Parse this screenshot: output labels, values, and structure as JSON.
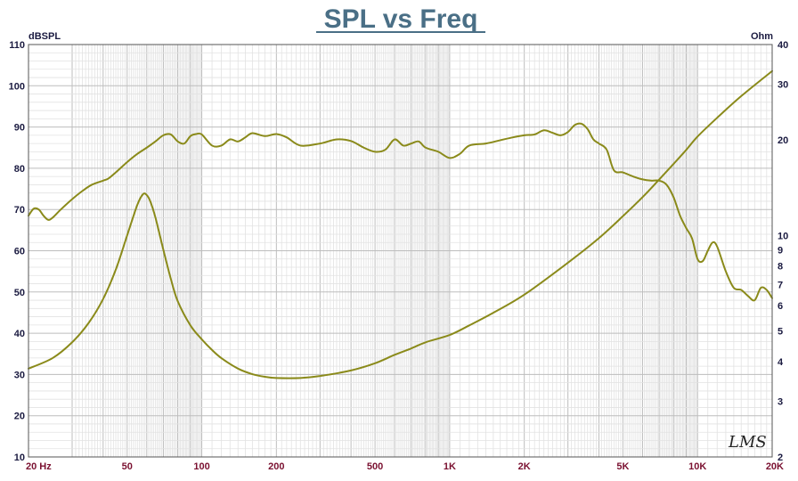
{
  "chart_data": {
    "type": "line",
    "title": "SPL vs Freq",
    "ylabel": "dBSPL",
    "y2label": "Ohm",
    "xscale": "log",
    "y2scale": "log",
    "xlim": [
      20,
      20000
    ],
    "ylim": [
      10,
      110
    ],
    "y2lim": [
      2,
      40
    ],
    "grid": true,
    "xticks": [
      {
        "v": 20,
        "label": "20  Hz"
      },
      {
        "v": 50,
        "label": "50"
      },
      {
        "v": 100,
        "label": "100"
      },
      {
        "v": 200,
        "label": "200"
      },
      {
        "v": 500,
        "label": "500"
      },
      {
        "v": 1000,
        "label": "1K"
      },
      {
        "v": 2000,
        "label": "2K"
      },
      {
        "v": 5000,
        "label": "5K"
      },
      {
        "v": 10000,
        "label": "10K"
      },
      {
        "v": 20000,
        "label": "20K"
      }
    ],
    "yticks": [
      {
        "v": 10,
        "label": "10"
      },
      {
        "v": 20,
        "label": "20"
      },
      {
        "v": 30,
        "label": "30"
      },
      {
        "v": 40,
        "label": "40"
      },
      {
        "v": 50,
        "label": "50"
      },
      {
        "v": 60,
        "label": "60"
      },
      {
        "v": 70,
        "label": "70"
      },
      {
        "v": 80,
        "label": "80"
      },
      {
        "v": 90,
        "label": "90"
      },
      {
        "v": 100,
        "label": "100"
      },
      {
        "v": 110,
        "label": "110"
      }
    ],
    "y2ticks": [
      {
        "v": 2,
        "label": "2"
      },
      {
        "v": 3,
        "label": "3"
      },
      {
        "v": 4,
        "label": "4"
      },
      {
        "v": 5,
        "label": "5"
      },
      {
        "v": 6,
        "label": "6"
      },
      {
        "v": 7,
        "label": "7"
      },
      {
        "v": 8,
        "label": "8"
      },
      {
        "v": 9,
        "label": "9"
      },
      {
        "v": 10,
        "label": "10"
      },
      {
        "v": 20,
        "label": "20"
      },
      {
        "v": 30,
        "label": "30"
      },
      {
        "v": 40,
        "label": "40"
      }
    ],
    "annotation": "LMS",
    "line_color": "#8a8a1a",
    "series": [
      {
        "axis": "left",
        "x": [
          20,
          21,
          22,
          23,
          24,
          25,
          27,
          30,
          33,
          36,
          40,
          42,
          45,
          50,
          55,
          60,
          65,
          70,
          75,
          80,
          85,
          90,
          95,
          100,
          110,
          120,
          130,
          140,
          150,
          160,
          180,
          200,
          220,
          250,
          300,
          350,
          400,
          450,
          500,
          550,
          600,
          650,
          700,
          750,
          800,
          900,
          1000,
          1100,
          1200,
          1400,
          1600,
          1800,
          2000,
          2200,
          2400,
          2600,
          2800,
          3000,
          3200,
          3400,
          3600,
          3800,
          4000,
          4300,
          4600,
          5000,
          5500,
          6000,
          6500,
          7000,
          7500,
          8000,
          8500,
          9000,
          9500,
          10000,
          10500,
          11000,
          11500,
          12000,
          13000,
          14000,
          15000,
          16000,
          17000,
          18000,
          19000,
          20000
        ],
        "y": [
          68.5,
          70.2,
          70.0,
          68.5,
          67.5,
          68,
          70,
          72.5,
          74.5,
          76,
          77,
          77.5,
          79,
          81.5,
          83.5,
          85,
          86.5,
          88,
          88.2,
          86.5,
          86,
          87.8,
          88.3,
          88.2,
          85.5,
          85.5,
          87,
          86.5,
          87.5,
          88.5,
          87.8,
          88.3,
          87.5,
          85.5,
          86,
          87,
          86.6,
          85,
          84,
          84.5,
          87,
          85.5,
          86,
          86.5,
          85,
          84,
          82.5,
          83.5,
          85.5,
          86,
          86.8,
          87.5,
          88,
          88.2,
          89.2,
          88.6,
          88,
          88.8,
          90.5,
          90.8,
          89.5,
          87,
          86,
          84.5,
          79.5,
          79,
          78,
          77.3,
          77,
          77,
          76,
          73,
          68.5,
          65.5,
          63,
          58,
          57.5,
          60,
          62,
          61,
          55,
          51,
          50.5,
          49,
          48,
          51,
          50.5,
          48.5
        ]
      },
      {
        "axis": "right",
        "x": [
          20,
          25,
          30,
          35,
          40,
          45,
          50,
          55,
          58,
          60,
          62,
          65,
          70,
          75,
          80,
          90,
          100,
          110,
          120,
          140,
          160,
          180,
          200,
          250,
          300,
          400,
          500,
          600,
          700,
          800,
          1000,
          1200,
          1500,
          2000,
          3000,
          4000,
          5000,
          6000,
          7000,
          8000,
          9000,
          10000,
          12000,
          15000,
          20000
        ],
        "y": [
          3.8,
          4.1,
          4.6,
          5.3,
          6.3,
          7.8,
          10.0,
          12.5,
          13.5,
          13.4,
          12.8,
          11.4,
          9.0,
          7.3,
          6.2,
          5.2,
          4.7,
          4.35,
          4.1,
          3.8,
          3.65,
          3.58,
          3.55,
          3.55,
          3.6,
          3.75,
          3.95,
          4.2,
          4.4,
          4.6,
          4.85,
          5.2,
          5.7,
          6.5,
          8.2,
          9.8,
          11.5,
          13.2,
          15.0,
          16.8,
          18.6,
          20.5,
          23.5,
          27.5,
          33.0
        ]
      }
    ]
  }
}
